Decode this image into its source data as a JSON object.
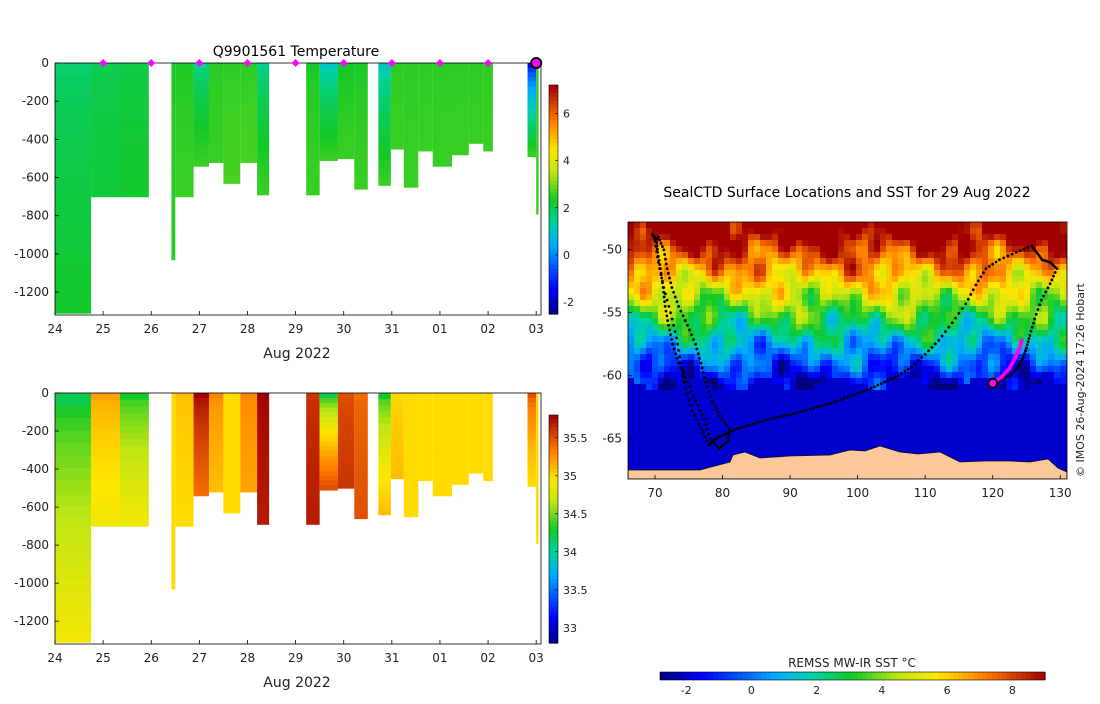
{
  "chart_data": [
    {
      "type": "heatmap",
      "id": "temperature",
      "title": "Q9901561  Temperature",
      "xlabel": "Aug 2022",
      "ylabel": "",
      "x_ticks": [
        "24",
        "25",
        "26",
        "27",
        "28",
        "29",
        "30",
        "31",
        "01",
        "02",
        "03"
      ],
      "x_range_days": [
        24,
        34.1
      ],
      "y_ticks": [
        0,
        -200,
        -400,
        -600,
        -800,
        -1000,
        -1200
      ],
      "ylim": [
        -1320,
        0
      ],
      "colorbar": {
        "min": -2.5,
        "max": 7.2,
        "ticks": [
          -2,
          0,
          2,
          4,
          6
        ]
      },
      "surfacing_days": [
        25,
        26,
        27,
        28,
        29,
        30,
        31,
        32,
        33,
        34
      ],
      "profiles": [
        {
          "t0": 24.0,
          "t1": 24.75,
          "depth": 1310,
          "top": 1.8,
          "bottom": 2.3
        },
        {
          "t0": 24.75,
          "t1": 25.35,
          "depth": 550,
          "top": 2.0,
          "bottom": 2.2
        },
        {
          "t0": 25.35,
          "t1": 25.35,
          "depth": 0,
          "top": 0,
          "bottom": 0
        },
        {
          "t0": 24.75,
          "t1": 25.35,
          "depth": 700,
          "top": 2.0,
          "bottom": 2.2
        },
        {
          "t0": 25.35,
          "t1": 25.95,
          "depth": 700,
          "top": 2.1,
          "bottom": 2.3
        },
        {
          "t0": 26.42,
          "t1": 26.5,
          "depth": 1030,
          "top": 2.4,
          "bottom": 2.5
        },
        {
          "t0": 26.5,
          "t1": 26.88,
          "depth": 700,
          "top": 2.4,
          "bottom": 2.6
        },
        {
          "t0": 26.88,
          "t1": 27.2,
          "depth": 540,
          "top": 1.5,
          "bottom": 2.6
        },
        {
          "t0": 27.2,
          "t1": 27.5,
          "depth": 520,
          "top": 2.5,
          "bottom": 2.6
        },
        {
          "t0": 27.5,
          "t1": 27.85,
          "depth": 630,
          "top": 2.5,
          "bottom": 2.7
        },
        {
          "t0": 27.85,
          "t1": 28.2,
          "depth": 520,
          "top": 2.5,
          "bottom": 2.7
        },
        {
          "t0": 28.2,
          "t1": 28.45,
          "depth": 690,
          "top": 1.5,
          "bottom": 2.6
        },
        {
          "t0": 29.22,
          "t1": 29.5,
          "depth": 690,
          "top": 2.4,
          "bottom": 2.6
        },
        {
          "t0": 29.5,
          "t1": 29.88,
          "depth": 510,
          "top": 1.0,
          "bottom": 2.6
        },
        {
          "t0": 29.88,
          "t1": 30.22,
          "depth": 500,
          "top": 2.3,
          "bottom": 2.6
        },
        {
          "t0": 30.22,
          "t1": 30.5,
          "depth": 660,
          "top": 2.4,
          "bottom": 2.6
        },
        {
          "t0": 30.72,
          "t1": 30.98,
          "depth": 640,
          "top": 1.0,
          "bottom": 2.6
        },
        {
          "t0": 30.98,
          "t1": 31.25,
          "depth": 450,
          "top": 2.5,
          "bottom": 2.6
        },
        {
          "t0": 31.25,
          "t1": 31.55,
          "depth": 650,
          "top": 2.5,
          "bottom": 2.6
        },
        {
          "t0": 31.55,
          "t1": 31.85,
          "depth": 460,
          "top": 2.5,
          "bottom": 2.6
        },
        {
          "t0": 31.85,
          "t1": 32.25,
          "depth": 540,
          "top": 2.5,
          "bottom": 2.6
        },
        {
          "t0": 32.25,
          "t1": 32.6,
          "depth": 480,
          "top": 2.5,
          "bottom": 2.6
        },
        {
          "t0": 32.6,
          "t1": 32.9,
          "depth": 420,
          "top": 2.5,
          "bottom": 2.6
        },
        {
          "t0": 32.9,
          "t1": 33.1,
          "depth": 460,
          "top": 2.5,
          "bottom": 2.6
        },
        {
          "t0": 33.82,
          "t1": 34.0,
          "depth": 490,
          "top": -1.5,
          "bottom": 2.6
        },
        {
          "t0": 34.0,
          "t1": 34.05,
          "depth": 790,
          "top": 2.5,
          "bottom": 2.6
        }
      ]
    },
    {
      "type": "heatmap",
      "id": "salinity",
      "title": "",
      "xlabel": "Aug 2022",
      "ylabel": "",
      "x_ticks": [
        "24",
        "25",
        "26",
        "27",
        "28",
        "29",
        "30",
        "31",
        "01",
        "02",
        "03"
      ],
      "x_range_days": [
        24,
        34.1
      ],
      "y_ticks": [
        0,
        -200,
        -400,
        -600,
        -800,
        -1000,
        -1200
      ],
      "ylim": [
        -1320,
        0
      ],
      "colorbar": {
        "min": 32.8,
        "max": 35.8,
        "ticks": [
          33,
          33.5,
          34,
          34.5,
          35,
          35.5
        ]
      },
      "profiles": [
        {
          "t0": 24.0,
          "t1": 24.75,
          "depth": 1310,
          "top": 34.2,
          "bottom": 34.9
        },
        {
          "t0": 24.75,
          "t1": 25.35,
          "depth": 550,
          "top": 35.3,
          "bottom": 34.9
        },
        {
          "t0": 24.75,
          "t1": 25.35,
          "depth": 700,
          "top": 35.2,
          "bottom": 34.9
        },
        {
          "t0": 25.35,
          "t1": 25.95,
          "depth": 700,
          "top": 34.3,
          "bottom": 34.9
        },
        {
          "t0": 26.42,
          "t1": 26.5,
          "depth": 1030,
          "top": 35.0,
          "bottom": 35.0
        },
        {
          "t0": 26.5,
          "t1": 26.88,
          "depth": 700,
          "top": 35.1,
          "bottom": 35.0
        },
        {
          "t0": 26.88,
          "t1": 27.2,
          "depth": 540,
          "top": 35.8,
          "bottom": 35.4
        },
        {
          "t0": 27.2,
          "t1": 27.5,
          "depth": 520,
          "top": 35.3,
          "bottom": 35.1
        },
        {
          "t0": 27.5,
          "t1": 27.85,
          "depth": 630,
          "top": 35.0,
          "bottom": 35.0
        },
        {
          "t0": 27.85,
          "t1": 28.2,
          "depth": 520,
          "top": 35.3,
          "bottom": 35.2
        },
        {
          "t0": 28.2,
          "t1": 28.45,
          "depth": 690,
          "top": 35.8,
          "bottom": 35.7
        },
        {
          "t0": 29.22,
          "t1": 29.5,
          "depth": 690,
          "top": 35.6,
          "bottom": 35.7
        },
        {
          "t0": 29.5,
          "t1": 29.88,
          "depth": 510,
          "top": 34.2,
          "bottom": 35.5
        },
        {
          "t0": 29.88,
          "t1": 30.22,
          "depth": 500,
          "top": 35.5,
          "bottom": 35.6
        },
        {
          "t0": 30.22,
          "t1": 30.5,
          "depth": 660,
          "top": 35.4,
          "bottom": 35.5
        },
        {
          "t0": 30.72,
          "t1": 30.98,
          "depth": 640,
          "top": 34.3,
          "bottom": 35.1
        },
        {
          "t0": 30.98,
          "t1": 31.25,
          "depth": 450,
          "top": 35.0,
          "bottom": 35.1
        },
        {
          "t0": 31.25,
          "t1": 31.55,
          "depth": 650,
          "top": 35.0,
          "bottom": 35.0
        },
        {
          "t0": 31.55,
          "t1": 31.85,
          "depth": 460,
          "top": 35.0,
          "bottom": 35.0
        },
        {
          "t0": 31.85,
          "t1": 32.25,
          "depth": 540,
          "top": 35.0,
          "bottom": 35.0
        },
        {
          "t0": 32.25,
          "t1": 32.6,
          "depth": 480,
          "top": 35.0,
          "bottom": 35.0
        },
        {
          "t0": 32.6,
          "t1": 32.9,
          "depth": 420,
          "top": 35.0,
          "bottom": 35.0
        },
        {
          "t0": 32.9,
          "t1": 33.1,
          "depth": 460,
          "top": 35.0,
          "bottom": 35.0
        },
        {
          "t0": 33.82,
          "t1": 34.0,
          "depth": 490,
          "top": 35.5,
          "bottom": 35.0
        },
        {
          "t0": 34.0,
          "t1": 34.05,
          "depth": 790,
          "top": 35.0,
          "bottom": 35.0
        }
      ]
    },
    {
      "type": "map",
      "id": "sst_map",
      "title": "SealCTD Surface Locations and SST for 29 Aug 2022",
      "x_ticks": [
        70,
        80,
        90,
        100,
        110,
        120,
        130
      ],
      "y_ticks": [
        -50,
        -55,
        -60,
        -65
      ],
      "xlim": [
        66,
        131
      ],
      "ylim": [
        -68.2,
        -47.8
      ],
      "colorbar_label": "REMSS MW-IR SST °C",
      "colorbar": {
        "min": -2.8,
        "max": 9.0,
        "ticks": [
          -2,
          0,
          2,
          4,
          6,
          8
        ]
      },
      "credit": "© IMOS 26-Aug-2024 17:26 Hobart",
      "track": [
        [
          69.6,
          -48.8
        ],
        [
          70.2,
          -49.2
        ],
        [
          70.4,
          -50.2
        ],
        [
          70.8,
          -51.5
        ],
        [
          71.2,
          -53
        ],
        [
          71.5,
          -54.5
        ],
        [
          72,
          -56
        ],
        [
          72.6,
          -57.5
        ],
        [
          73.5,
          -59
        ],
        [
          74.8,
          -60.5
        ],
        [
          76,
          -62
        ],
        [
          77.3,
          -63.5
        ],
        [
          78.2,
          -65
        ],
        [
          79.5,
          -65.8
        ],
        [
          80.8,
          -65.2
        ],
        [
          81,
          -64.2
        ],
        [
          79.6,
          -63.2
        ],
        [
          78.5,
          -62
        ],
        [
          77.5,
          -60.5
        ],
        [
          76.8,
          -59
        ],
        [
          76,
          -57.5
        ],
        [
          74.8,
          -56
        ],
        [
          73.5,
          -54.5
        ],
        [
          72.5,
          -53
        ],
        [
          71.8,
          -51.5
        ],
        [
          71.3,
          -50
        ],
        [
          70.5,
          -49
        ],
        [
          70,
          -49.3
        ],
        [
          70.5,
          -51
        ],
        [
          71.3,
          -53
        ],
        [
          72.3,
          -55
        ],
        [
          73.2,
          -57
        ],
        [
          73.8,
          -59
        ],
        [
          74.5,
          -61
        ],
        [
          75.5,
          -62.8
        ],
        [
          76.8,
          -64.2
        ],
        [
          78,
          -65.5
        ],
        [
          79,
          -65
        ],
        [
          80.5,
          -64.6
        ],
        [
          82.2,
          -64.2
        ],
        [
          84,
          -63.9
        ],
        [
          86,
          -63.6
        ],
        [
          88,
          -63.3
        ],
        [
          90,
          -63.1
        ],
        [
          92,
          -62.8
        ],
        [
          94,
          -62.5
        ],
        [
          96,
          -62.2
        ],
        [
          98,
          -61.8
        ],
        [
          100,
          -61.4
        ],
        [
          102,
          -61
        ],
        [
          104,
          -60.5
        ],
        [
          106,
          -60
        ],
        [
          108,
          -59.3
        ],
        [
          110,
          -58.3
        ],
        [
          112,
          -57.2
        ],
        [
          114,
          -55.8
        ],
        [
          116,
          -54.3
        ],
        [
          117.5,
          -52.8
        ],
        [
          119,
          -51.5
        ],
        [
          121,
          -50.8
        ],
        [
          123.5,
          -50.2
        ],
        [
          125.8,
          -49.7
        ],
        [
          126.5,
          -50.2
        ],
        [
          127.3,
          -50.8
        ],
        [
          128.5,
          -51
        ],
        [
          129.5,
          -51.5
        ],
        [
          128.5,
          -52.7
        ],
        [
          127.2,
          -54
        ],
        [
          126.2,
          -55.5
        ],
        [
          125.5,
          -56.8
        ],
        [
          125,
          -57.8
        ],
        [
          124.4,
          -58.7
        ],
        [
          123.6,
          -59.4
        ],
        [
          122.5,
          -60
        ],
        [
          121.3,
          -60.3
        ],
        [
          120,
          -60.6
        ]
      ],
      "recent_track": [
        [
          120,
          -60.6
        ],
        [
          121.3,
          -60.1
        ],
        [
          122.5,
          -59.4
        ],
        [
          123.3,
          -58.6
        ],
        [
          124,
          -57.8
        ],
        [
          124.4,
          -57
        ]
      ],
      "current_position": [
        120,
        -60.6
      ]
    }
  ]
}
